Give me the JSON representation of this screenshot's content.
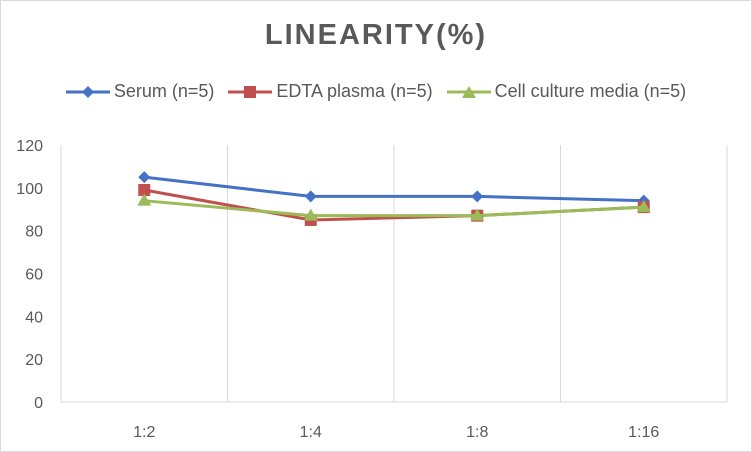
{
  "chart_data": {
    "type": "line",
    "title": "LINEARITY(%)",
    "categories": [
      "1:2",
      "1:4",
      "1:8",
      "1:16"
    ],
    "series": [
      {
        "name": "Serum (n=5)",
        "values": [
          105,
          96,
          96,
          94
        ],
        "color": "#4472c4",
        "marker": "diamond"
      },
      {
        "name": "EDTA plasma (n=5)",
        "values": [
          99,
          85,
          87,
          91
        ],
        "color": "#c0504d",
        "marker": "square"
      },
      {
        "name": "Cell culture media (n=5)",
        "values": [
          94,
          87,
          87,
          91
        ],
        "color": "#9bbb59",
        "marker": "triangle"
      }
    ],
    "ylim": [
      0,
      120
    ],
    "yticks": [
      0,
      20,
      40,
      60,
      80,
      100,
      120
    ],
    "xlabel": "",
    "ylabel": "",
    "grid": "vertical",
    "legend_position": "top"
  }
}
